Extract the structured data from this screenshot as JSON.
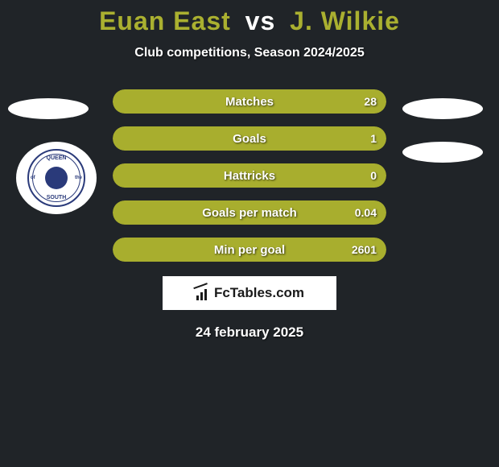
{
  "header": {
    "player1": "Euan East",
    "vs": "vs",
    "player2": "J. Wilkie",
    "subtitle": "Club competitions, Season 2024/2025"
  },
  "badge": {
    "top": "QUEEN",
    "bottom": "SOUTH",
    "left": "of",
    "right": "the"
  },
  "colors": {
    "bar_left": "#a8ae2e",
    "bar_right": "#a8ae2e",
    "bar_right_alt": "#8c9226",
    "background": "#202428"
  },
  "bars": [
    {
      "label": "Matches",
      "value_right": "28",
      "left_pct": 45,
      "right_pct": 55
    },
    {
      "label": "Goals",
      "value_right": "1",
      "left_pct": 47,
      "right_pct": 53
    },
    {
      "label": "Hattricks",
      "value_right": "0",
      "left_pct": 47,
      "right_pct": 53
    },
    {
      "label": "Goals per match",
      "value_right": "0.04",
      "left_pct": 45,
      "right_pct": 55
    },
    {
      "label": "Min per goal",
      "value_right": "2601",
      "left_pct": 45,
      "right_pct": 55
    }
  ],
  "brand": "FcTables.com",
  "date": "24 february 2025"
}
